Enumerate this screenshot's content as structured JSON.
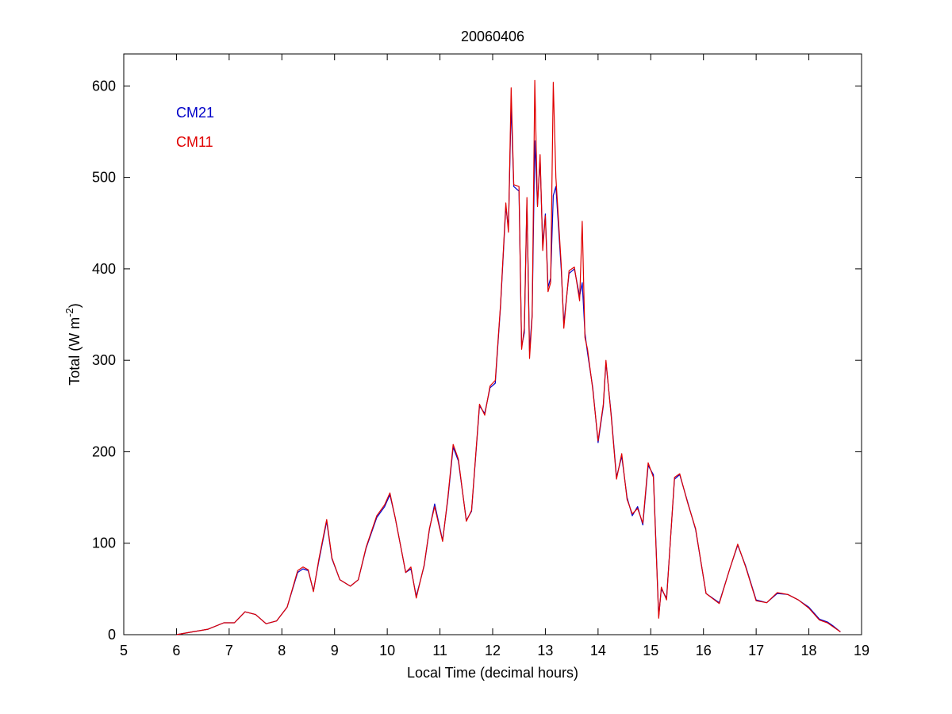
{
  "chart_data": {
    "type": "line",
    "title": "20060406",
    "xlabel": "Local Time (decimal hours)",
    "ylabel": {
      "prefix": "Total (W m",
      "sup": "-2",
      "suffix": ")"
    },
    "xlim": [
      5,
      19
    ],
    "ylim": [
      0,
      635
    ],
    "xticks": [
      5,
      6,
      7,
      8,
      9,
      10,
      11,
      12,
      13,
      14,
      15,
      16,
      17,
      18,
      19
    ],
    "yticks": [
      0,
      100,
      200,
      300,
      400,
      500,
      600
    ],
    "grid": false,
    "legend_position": "top-left",
    "series": [
      {
        "name": "CM21",
        "color": "#0000c8",
        "points": [
          [
            6.0,
            0
          ],
          [
            6.3,
            3
          ],
          [
            6.6,
            6
          ],
          [
            6.9,
            13
          ],
          [
            7.1,
            13
          ],
          [
            7.3,
            25
          ],
          [
            7.5,
            22
          ],
          [
            7.7,
            12
          ],
          [
            7.9,
            15
          ],
          [
            8.1,
            30
          ],
          [
            8.3,
            68
          ],
          [
            8.4,
            72
          ],
          [
            8.5,
            70
          ],
          [
            8.6,
            48
          ],
          [
            8.7,
            80
          ],
          [
            8.85,
            124
          ],
          [
            8.95,
            83
          ],
          [
            9.1,
            60
          ],
          [
            9.3,
            53
          ],
          [
            9.45,
            60
          ],
          [
            9.6,
            95
          ],
          [
            9.8,
            128
          ],
          [
            9.95,
            140
          ],
          [
            10.05,
            153
          ],
          [
            10.15,
            128
          ],
          [
            10.35,
            68
          ],
          [
            10.45,
            72
          ],
          [
            10.55,
            42
          ],
          [
            10.7,
            75
          ],
          [
            10.8,
            115
          ],
          [
            10.9,
            143
          ],
          [
            11.05,
            103
          ],
          [
            11.15,
            148
          ],
          [
            11.25,
            205
          ],
          [
            11.35,
            190
          ],
          [
            11.5,
            125
          ],
          [
            11.6,
            135
          ],
          [
            11.75,
            250
          ],
          [
            11.85,
            242
          ],
          [
            11.95,
            270
          ],
          [
            12.05,
            275
          ],
          [
            12.15,
            360
          ],
          [
            12.25,
            468
          ],
          [
            12.3,
            445
          ],
          [
            12.35,
            580
          ],
          [
            12.4,
            490
          ],
          [
            12.5,
            485
          ],
          [
            12.55,
            315
          ],
          [
            12.6,
            330
          ],
          [
            12.65,
            475
          ],
          [
            12.7,
            310
          ],
          [
            12.75,
            350
          ],
          [
            12.8,
            540
          ],
          [
            12.85,
            470
          ],
          [
            12.9,
            520
          ],
          [
            12.95,
            425
          ],
          [
            13.0,
            460
          ],
          [
            13.05,
            380
          ],
          [
            13.1,
            390
          ],
          [
            13.15,
            480
          ],
          [
            13.2,
            490
          ],
          [
            13.3,
            400
          ],
          [
            13.35,
            340
          ],
          [
            13.45,
            395
          ],
          [
            13.55,
            400
          ],
          [
            13.65,
            370
          ],
          [
            13.7,
            385
          ],
          [
            13.75,
            330
          ],
          [
            13.8,
            308
          ],
          [
            13.9,
            270
          ],
          [
            14.0,
            210
          ],
          [
            14.1,
            250
          ],
          [
            14.15,
            298
          ],
          [
            14.25,
            240
          ],
          [
            14.35,
            172
          ],
          [
            14.45,
            195
          ],
          [
            14.55,
            150
          ],
          [
            14.65,
            130
          ],
          [
            14.75,
            140
          ],
          [
            14.85,
            120
          ],
          [
            14.95,
            185
          ],
          [
            15.05,
            175
          ],
          [
            15.15,
            20
          ],
          [
            15.2,
            50
          ],
          [
            15.3,
            40
          ],
          [
            15.45,
            170
          ],
          [
            15.55,
            175
          ],
          [
            15.7,
            145
          ],
          [
            15.85,
            115
          ],
          [
            16.05,
            45
          ],
          [
            16.3,
            35
          ],
          [
            16.5,
            72
          ],
          [
            16.65,
            98
          ],
          [
            16.8,
            75
          ],
          [
            17.0,
            38
          ],
          [
            17.2,
            35
          ],
          [
            17.4,
            45
          ],
          [
            17.6,
            44
          ],
          [
            17.8,
            38
          ],
          [
            18.0,
            30
          ],
          [
            18.2,
            17
          ],
          [
            18.35,
            14
          ],
          [
            18.45,
            10
          ],
          [
            18.6,
            3
          ]
        ]
      },
      {
        "name": "CM11",
        "color": "#e00000",
        "points": [
          [
            6.0,
            0
          ],
          [
            6.3,
            3
          ],
          [
            6.6,
            6
          ],
          [
            6.9,
            13
          ],
          [
            7.1,
            13
          ],
          [
            7.3,
            25
          ],
          [
            7.5,
            22
          ],
          [
            7.7,
            12
          ],
          [
            7.9,
            15
          ],
          [
            8.1,
            30
          ],
          [
            8.3,
            70
          ],
          [
            8.4,
            74
          ],
          [
            8.5,
            71
          ],
          [
            8.6,
            47
          ],
          [
            8.7,
            82
          ],
          [
            8.85,
            126
          ],
          [
            8.95,
            84
          ],
          [
            9.1,
            60
          ],
          [
            9.3,
            53
          ],
          [
            9.45,
            60
          ],
          [
            9.6,
            96
          ],
          [
            9.8,
            130
          ],
          [
            9.95,
            142
          ],
          [
            10.05,
            155
          ],
          [
            10.15,
            128
          ],
          [
            10.35,
            68
          ],
          [
            10.45,
            74
          ],
          [
            10.55,
            40
          ],
          [
            10.7,
            76
          ],
          [
            10.8,
            116
          ],
          [
            10.9,
            140
          ],
          [
            11.05,
            102
          ],
          [
            11.15,
            150
          ],
          [
            11.25,
            208
          ],
          [
            11.35,
            192
          ],
          [
            11.5,
            124
          ],
          [
            11.6,
            136
          ],
          [
            11.75,
            252
          ],
          [
            11.85,
            240
          ],
          [
            11.95,
            272
          ],
          [
            12.05,
            278
          ],
          [
            12.15,
            362
          ],
          [
            12.25,
            472
          ],
          [
            12.3,
            440
          ],
          [
            12.35,
            598
          ],
          [
            12.4,
            492
          ],
          [
            12.5,
            490
          ],
          [
            12.55,
            312
          ],
          [
            12.6,
            335
          ],
          [
            12.65,
            478
          ],
          [
            12.7,
            302
          ],
          [
            12.75,
            348
          ],
          [
            12.8,
            606
          ],
          [
            12.85,
            468
          ],
          [
            12.9,
            525
          ],
          [
            12.95,
            420
          ],
          [
            13.0,
            458
          ],
          [
            13.05,
            375
          ],
          [
            13.1,
            385
          ],
          [
            13.15,
            604
          ],
          [
            13.2,
            500
          ],
          [
            13.3,
            405
          ],
          [
            13.35,
            335
          ],
          [
            13.45,
            398
          ],
          [
            13.55,
            402
          ],
          [
            13.65,
            365
          ],
          [
            13.7,
            452
          ],
          [
            13.75,
            325
          ],
          [
            13.8,
            312
          ],
          [
            13.9,
            268
          ],
          [
            14.0,
            212
          ],
          [
            14.1,
            252
          ],
          [
            14.15,
            300
          ],
          [
            14.25,
            238
          ],
          [
            14.35,
            170
          ],
          [
            14.45,
            198
          ],
          [
            14.55,
            148
          ],
          [
            14.65,
            132
          ],
          [
            14.75,
            138
          ],
          [
            14.85,
            122
          ],
          [
            14.95,
            188
          ],
          [
            15.05,
            172
          ],
          [
            15.15,
            18
          ],
          [
            15.2,
            52
          ],
          [
            15.3,
            38
          ],
          [
            15.45,
            172
          ],
          [
            15.55,
            176
          ],
          [
            15.7,
            144
          ],
          [
            15.85,
            116
          ],
          [
            16.05,
            45
          ],
          [
            16.3,
            34
          ],
          [
            16.5,
            72
          ],
          [
            16.65,
            99
          ],
          [
            16.8,
            74
          ],
          [
            17.0,
            37
          ],
          [
            17.2,
            35
          ],
          [
            17.4,
            46
          ],
          [
            17.6,
            44
          ],
          [
            17.8,
            38
          ],
          [
            18.0,
            29
          ],
          [
            18.2,
            16
          ],
          [
            18.35,
            13
          ],
          [
            18.45,
            9
          ],
          [
            18.6,
            3
          ]
        ]
      }
    ]
  }
}
